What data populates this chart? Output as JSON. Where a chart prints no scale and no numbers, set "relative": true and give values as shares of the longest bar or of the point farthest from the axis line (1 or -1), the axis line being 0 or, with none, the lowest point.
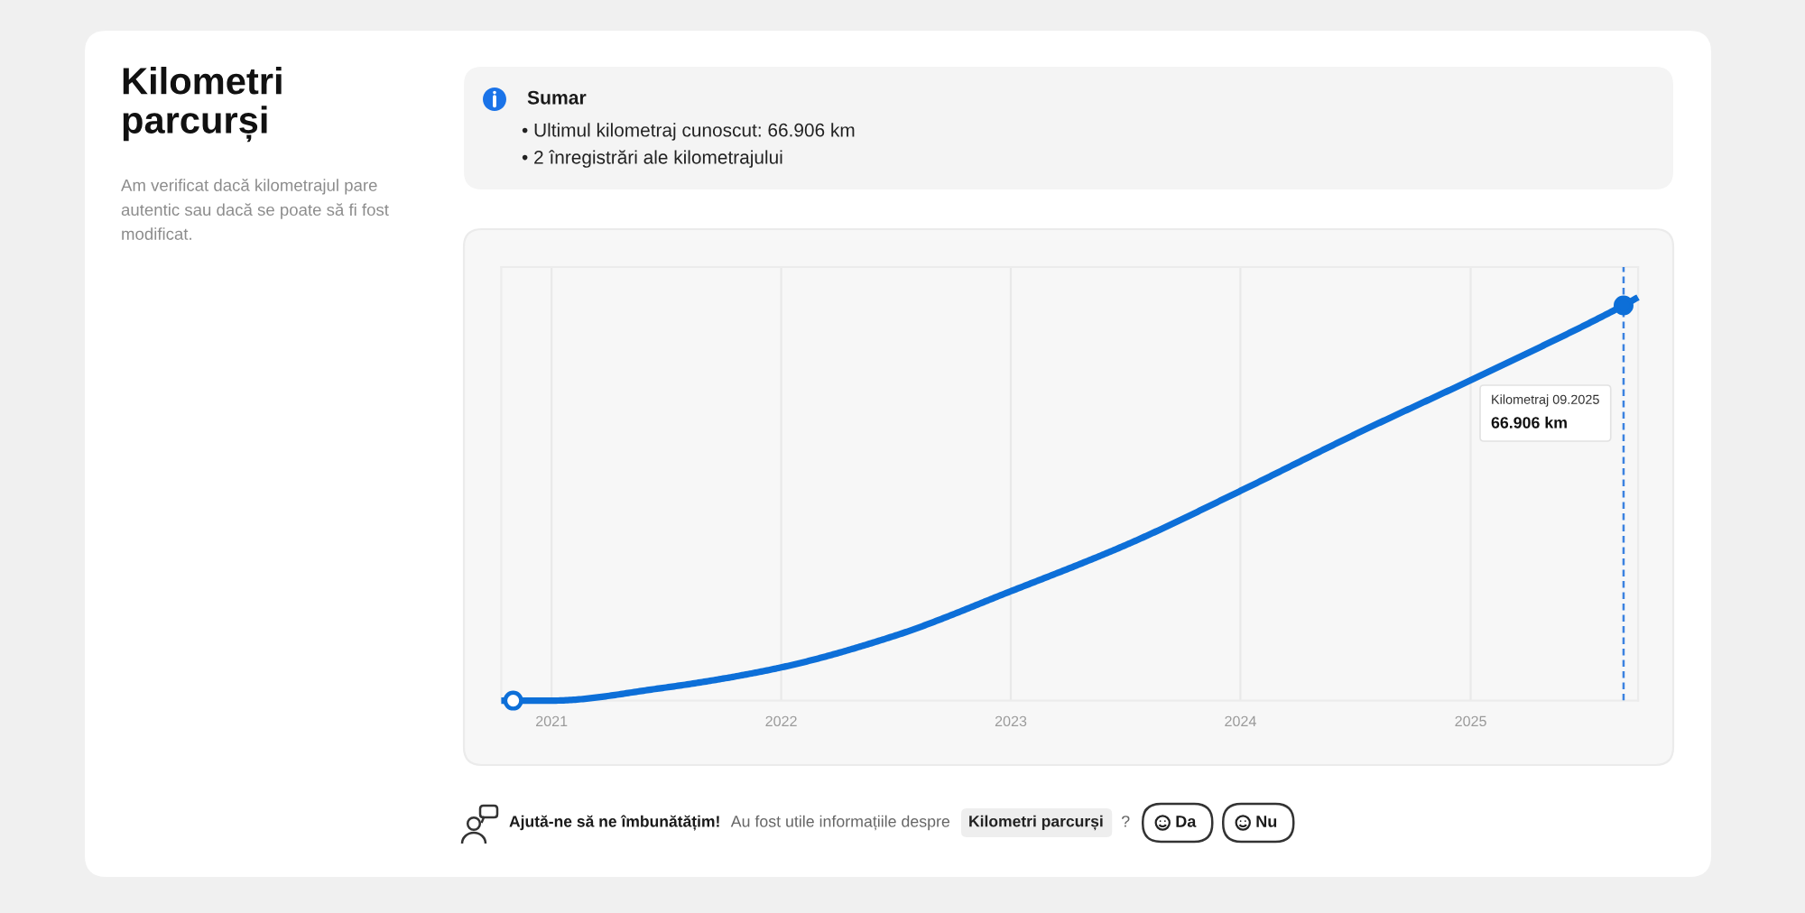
{
  "chart_data": {
    "type": "line",
    "title": "Kilometri parcurși",
    "subtitle": "Am verificat dacă kilometrajul pare autentic sau dacă se poate să fi fost modificat.",
    "annotations": [
      "Sumar",
      "• Ultimul kilometraj cunoscut: 66.906 km",
      "• 2 înregistrări ale kilometrajului",
      "Kilometraj 09.2025",
      "66.906 km",
      "Ajută-ne să ne îmbunătățim!",
      "Au fost utile informațiile despre",
      "Kilometri parcurși",
      "?",
      "Da",
      "Nu"
    ],
    "series": [
      {
        "color": "#0d6fd8",
        "x": [
          "2020-10-13",
          "2021-01-01",
          "2021-06-20",
          "2021-12-25",
          "2022-06-29",
          "2022-12-30",
          "2023-07-09",
          "2024-01-01",
          "2024-07-01",
          "2025-01-22",
          "2025-09-01",
          "2025-09-24"
        ],
        "values": [
          0,
          0,
          0.03,
          0.08,
          0.16,
          0.27,
          0.39,
          0.52,
          0.66,
          0.81,
          0.98,
          1
        ]
      },
      {
        "type": "scatter",
        "marker": "circle",
        "color": "#0d6fd8",
        "colors": [
          "#ffffff",
          "#0d6fd8"
        ],
        "x": [
          "2020-11",
          "2025-09"
        ],
        "values": [
          0,
          0.98
        ]
      }
    ],
    "relative": true,
    "xlim": [
      "2020-10-13",
      "2025-09-24"
    ],
    "xticks": [
      "2021",
      "2022",
      "2023",
      "2024",
      "2025"
    ],
    "grid": "x",
    "tick_labels": "x",
    "ref_lines": [
      {
        "axis": "x",
        "value": "2025-09",
        "color": "#3b82e0",
        "line_style": "dashed"
      }
    ]
  }
}
